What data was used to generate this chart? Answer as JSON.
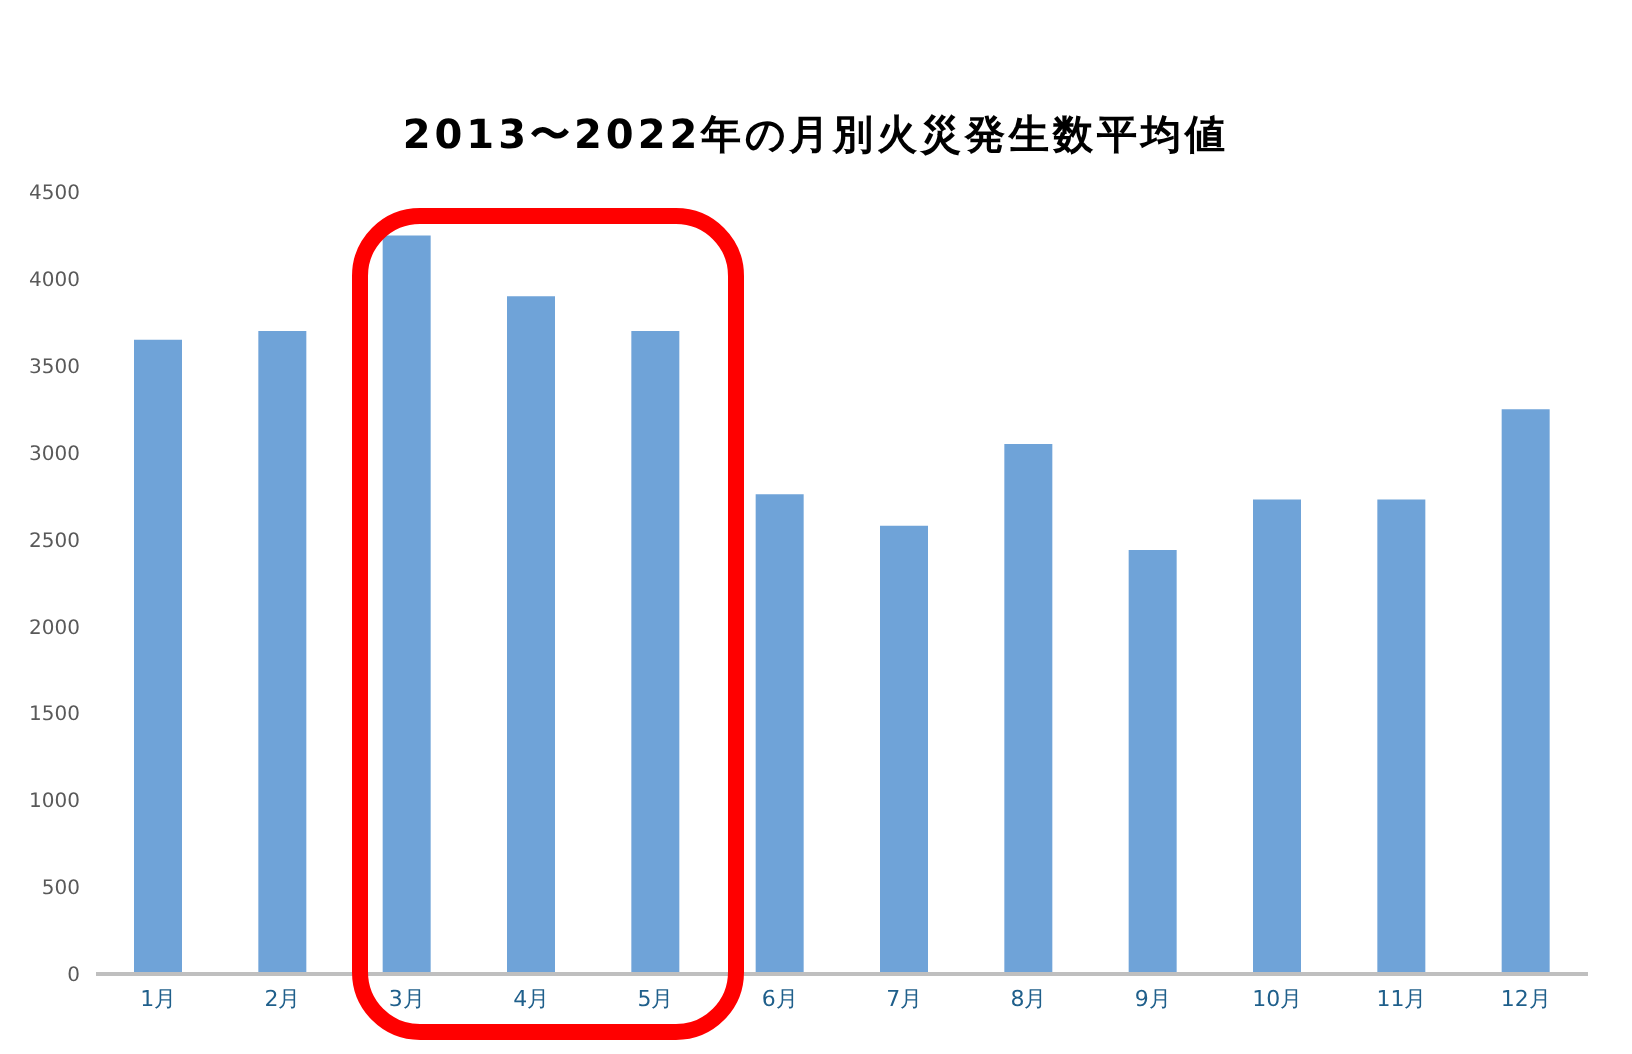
{
  "chart_data": {
    "type": "bar",
    "title": "2013〜2022年の月別火災発生数平均値",
    "categories": [
      "1月",
      "2月",
      "3月",
      "4月",
      "5月",
      "6月",
      "7月",
      "8月",
      "9月",
      "10月",
      "11月",
      "12月"
    ],
    "values": [
      3650,
      3700,
      4250,
      3900,
      3700,
      2760,
      2580,
      3050,
      2440,
      2730,
      2730,
      3250
    ],
    "color": "#6fa3d8",
    "ylim": [
      0,
      4500
    ],
    "yticks": [
      0,
      500,
      1000,
      1500,
      2000,
      2500,
      3000,
      3500,
      4000,
      4500
    ],
    "grid": false,
    "legend": false
  }
}
